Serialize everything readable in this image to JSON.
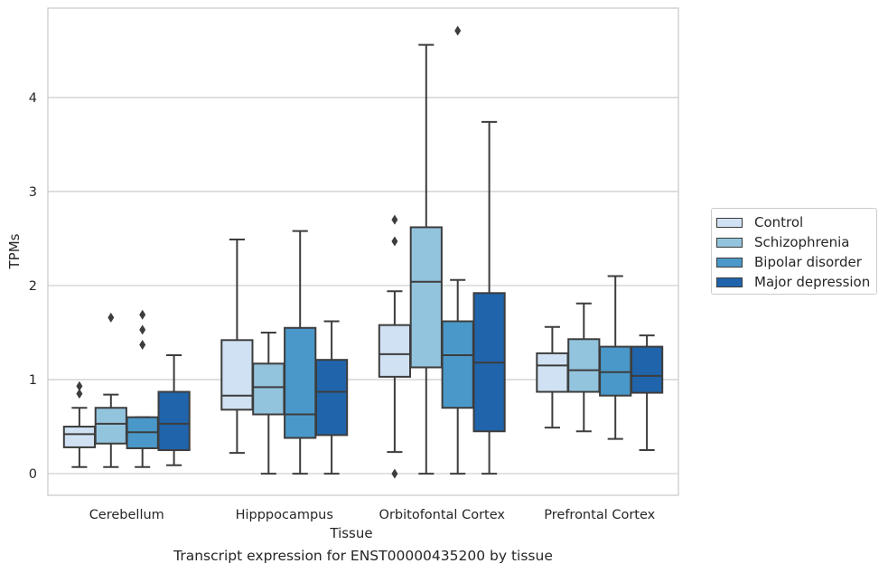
{
  "caption": "Transcript expression for ENST00000435200 by tissue",
  "chart_data": {
    "type": "box",
    "xlabel": "Tissue",
    "ylabel": "TPMs",
    "ylim": [
      -0.23,
      4.95
    ],
    "yticks": [
      0,
      1,
      2,
      3,
      4
    ],
    "grid": true,
    "legend_position": "right",
    "categories": [
      "Cerebellum",
      "Hipppocampus",
      "Orbitofontal Cortex",
      "Prefrontal Cortex"
    ],
    "series": [
      {
        "name": "Control",
        "color": "#cfe1f2",
        "boxes": [
          {
            "whisker_low": 0.07,
            "q1": 0.28,
            "median": 0.42,
            "q3": 0.5,
            "whisker_high": 0.7,
            "outliers": [
              0.85,
              0.93
            ]
          },
          {
            "whisker_low": 0.22,
            "q1": 0.68,
            "median": 0.83,
            "q3": 1.42,
            "whisker_high": 2.49,
            "outliers": []
          },
          {
            "whisker_low": 0.23,
            "q1": 1.03,
            "median": 1.27,
            "q3": 1.58,
            "whisker_high": 1.94,
            "outliers": [
              0.0,
              2.47,
              2.7
            ]
          },
          {
            "whisker_low": 0.49,
            "q1": 0.87,
            "median": 1.15,
            "q3": 1.28,
            "whisker_high": 1.56,
            "outliers": []
          }
        ]
      },
      {
        "name": "Schizophrenia",
        "color": "#93c4de",
        "boxes": [
          {
            "whisker_low": 0.07,
            "q1": 0.32,
            "median": 0.53,
            "q3": 0.7,
            "whisker_high": 0.84,
            "outliers": [
              1.66
            ]
          },
          {
            "whisker_low": 0.0,
            "q1": 0.63,
            "median": 0.92,
            "q3": 1.17,
            "whisker_high": 1.5,
            "outliers": []
          },
          {
            "whisker_low": 0.0,
            "q1": 1.13,
            "median": 2.04,
            "q3": 2.62,
            "whisker_high": 4.56,
            "outliers": []
          },
          {
            "whisker_low": 0.45,
            "q1": 0.87,
            "median": 1.1,
            "q3": 1.43,
            "whisker_high": 1.81,
            "outliers": []
          }
        ]
      },
      {
        "name": "Bipolar disorder",
        "color": "#4a98c9",
        "boxes": [
          {
            "whisker_low": 0.07,
            "q1": 0.27,
            "median": 0.44,
            "q3": 0.6,
            "whisker_high": 0.6,
            "outliers": [
              1.37,
              1.53,
              1.69
            ]
          },
          {
            "whisker_low": 0.0,
            "q1": 0.38,
            "median": 0.63,
            "q3": 1.55,
            "whisker_high": 2.58,
            "outliers": []
          },
          {
            "whisker_low": 0.0,
            "q1": 0.7,
            "median": 1.26,
            "q3": 1.62,
            "whisker_high": 2.06,
            "outliers": [
              4.71
            ]
          },
          {
            "whisker_low": 0.37,
            "q1": 0.83,
            "median": 1.08,
            "q3": 1.35,
            "whisker_high": 2.1,
            "outliers": []
          }
        ]
      },
      {
        "name": "Major depression",
        "color": "#2064ab",
        "boxes": [
          {
            "whisker_low": 0.09,
            "q1": 0.25,
            "median": 0.53,
            "q3": 0.87,
            "whisker_high": 1.26,
            "outliers": []
          },
          {
            "whisker_low": 0.0,
            "q1": 0.41,
            "median": 0.87,
            "q3": 1.21,
            "whisker_high": 1.62,
            "outliers": []
          },
          {
            "whisker_low": 0.0,
            "q1": 0.45,
            "median": 1.18,
            "q3": 1.92,
            "whisker_high": 3.74,
            "outliers": []
          },
          {
            "whisker_low": 0.25,
            "q1": 0.86,
            "median": 1.04,
            "q3": 1.35,
            "whisker_high": 1.47,
            "outliers": []
          }
        ]
      }
    ]
  }
}
